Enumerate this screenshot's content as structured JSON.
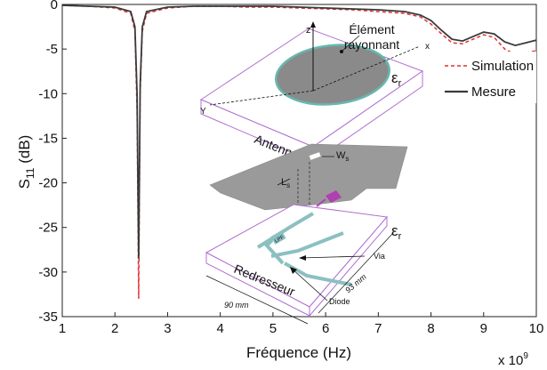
{
  "chart_data": {
    "type": "line",
    "xlabel": "Fréquence (Hz)",
    "x_multiplier": "x 10",
    "x_multiplier_exp": "9",
    "ylabel_main": "S",
    "ylabel_sub": "11",
    "ylabel_unit": " (dB)",
    "xlim": [
      1,
      10
    ],
    "ylim": [
      -35,
      0
    ],
    "xticks": [
      "1",
      "2",
      "3",
      "4",
      "5",
      "6",
      "7",
      "8",
      "9",
      "10"
    ],
    "yticks": [
      "0",
      "-5",
      "-10",
      "-15",
      "-20",
      "-25",
      "-30",
      "-35"
    ],
    "grid": false,
    "legend_position": "top-right",
    "series": [
      {
        "name": "Simulation",
        "style": "dashed",
        "color": "#e03030",
        "x": [
          1.0,
          1.5,
          2.0,
          2.3,
          2.38,
          2.42,
          2.45,
          2.48,
          2.52,
          2.6,
          3.0,
          3.5,
          4.0,
          4.5,
          5.0,
          5.5,
          6.0,
          6.5,
          7.0,
          7.5,
          7.8,
          8.0,
          8.2,
          8.4,
          8.6,
          8.8,
          9.0,
          9.2,
          9.4,
          9.6,
          9.8,
          10.0
        ],
        "y": [
          -0.1,
          -0.2,
          -0.4,
          -1.0,
          -3.0,
          -12.0,
          -33.0,
          -10.0,
          -3.0,
          -1.0,
          -0.4,
          -0.2,
          -0.2,
          -0.3,
          -0.3,
          -0.4,
          -0.5,
          -0.6,
          -0.8,
          -1.0,
          -1.4,
          -2.2,
          -3.3,
          -4.3,
          -4.4,
          -3.9,
          -3.4,
          -3.7,
          -5.0,
          -5.6,
          -5.4,
          -5.2
        ]
      },
      {
        "name": "Mesure",
        "style": "solid",
        "color": "#3a3a3a",
        "x": [
          1.0,
          1.5,
          2.0,
          2.3,
          2.38,
          2.42,
          2.45,
          2.48,
          2.52,
          2.6,
          3.0,
          3.5,
          4.0,
          4.5,
          5.0,
          5.5,
          6.0,
          6.5,
          7.0,
          7.5,
          7.8,
          8.0,
          8.2,
          8.4,
          8.6,
          8.8,
          9.0,
          9.2,
          9.4,
          9.6,
          9.8,
          10.0
        ],
        "y": [
          -0.1,
          -0.2,
          -0.3,
          -0.8,
          -2.5,
          -10.0,
          -28.5,
          -9.0,
          -2.5,
          -0.8,
          -0.3,
          -0.2,
          -0.2,
          -0.2,
          -0.2,
          -0.3,
          -0.4,
          -0.5,
          -0.6,
          -0.8,
          -1.2,
          -1.8,
          -2.9,
          -3.9,
          -4.1,
          -3.6,
          -3.1,
          -3.3,
          -4.2,
          -4.6,
          -4.3,
          -4.0
        ]
      }
    ]
  },
  "schematic": {
    "label_z": "z",
    "label_x": "x",
    "label_y": "Y",
    "element_label_1": "Élément",
    "element_label_2": "rayonnant",
    "antenne": "Antenne",
    "eps": "ε",
    "eps_sub": "r",
    "ws": "W",
    "ws_sub": "s",
    "ls": "L",
    "ls_sub": "s",
    "lpf": "LPF",
    "via": "Via",
    "redresseur": "Redresseur",
    "dim_90": "90 mm",
    "dim_93": "93 mm",
    "diode": "Diode"
  },
  "colors": {
    "patch": "#8a8a8a",
    "patch_edge": "#66b8b0",
    "box_edge": "#b070d0",
    "ground": "#9a9a9a",
    "trace": "#8cc0c0",
    "diode": "#b040b0"
  }
}
